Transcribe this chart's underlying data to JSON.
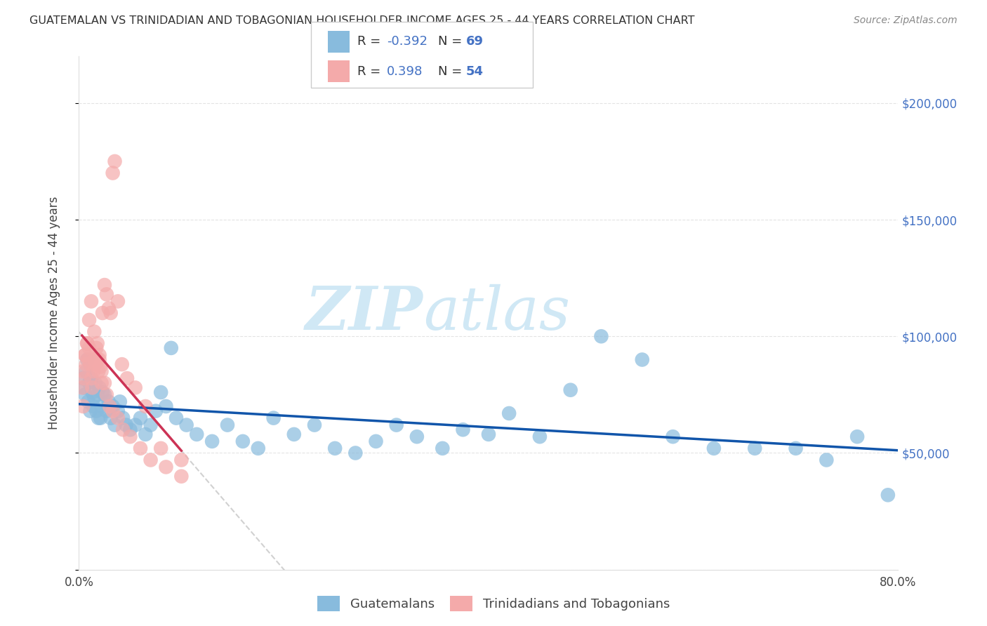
{
  "title": "GUATEMALAN VS TRINIDADIAN AND TOBAGONIAN HOUSEHOLDER INCOME AGES 25 - 44 YEARS CORRELATION CHART",
  "source": "Source: ZipAtlas.com",
  "ylabel": "Householder Income Ages 25 - 44 years",
  "xlim": [
    0.0,
    0.8
  ],
  "ylim": [
    0,
    220000
  ],
  "xticks": [
    0.0,
    0.1,
    0.2,
    0.3,
    0.4,
    0.5,
    0.6,
    0.7,
    0.8
  ],
  "xticklabels": [
    "0.0%",
    "",
    "",
    "",
    "",
    "",
    "",
    "",
    "80.0%"
  ],
  "ytick_positions": [
    0,
    50000,
    100000,
    150000,
    200000
  ],
  "ytick_labels": [
    "",
    "$50,000",
    "$100,000",
    "$150,000",
    "$200,000"
  ],
  "legend_r_blue": "-0.392",
  "legend_n_blue": "69",
  "legend_r_pink": "0.398",
  "legend_n_pink": "54",
  "blue_color": "#88bbdd",
  "pink_color": "#f4aaaa",
  "trend_blue_color": "#1155aa",
  "trend_pink_color": "#cc3355",
  "gray_dash_color": "#cccccc",
  "watermark_zip": "ZIP",
  "watermark_atlas": "atlas",
  "watermark_color": "#d0e8f5",
  "blue_scatter_x": [
    0.004,
    0.005,
    0.006,
    0.007,
    0.008,
    0.009,
    0.01,
    0.011,
    0.012,
    0.013,
    0.014,
    0.015,
    0.016,
    0.017,
    0.018,
    0.019,
    0.02,
    0.021,
    0.022,
    0.023,
    0.025,
    0.027,
    0.029,
    0.031,
    0.033,
    0.035,
    0.038,
    0.04,
    0.043,
    0.046,
    0.05,
    0.055,
    0.06,
    0.065,
    0.07,
    0.075,
    0.08,
    0.085,
    0.09,
    0.095,
    0.105,
    0.115,
    0.13,
    0.145,
    0.16,
    0.175,
    0.19,
    0.21,
    0.23,
    0.25,
    0.27,
    0.29,
    0.31,
    0.33,
    0.355,
    0.375,
    0.4,
    0.42,
    0.45,
    0.48,
    0.51,
    0.55,
    0.58,
    0.62,
    0.66,
    0.7,
    0.73,
    0.76,
    0.79
  ],
  "blue_scatter_y": [
    82000,
    78000,
    75000,
    85000,
    90000,
    72000,
    80000,
    68000,
    82000,
    76000,
    70000,
    74000,
    80000,
    68000,
    75000,
    65000,
    78000,
    65000,
    70000,
    76000,
    75000,
    68000,
    72000,
    65000,
    70000,
    62000,
    68000,
    72000,
    65000,
    62000,
    60000,
    62000,
    65000,
    58000,
    62000,
    68000,
    76000,
    70000,
    95000,
    65000,
    62000,
    58000,
    55000,
    62000,
    55000,
    52000,
    65000,
    58000,
    62000,
    52000,
    50000,
    55000,
    62000,
    57000,
    52000,
    60000,
    58000,
    67000,
    57000,
    77000,
    100000,
    90000,
    57000,
    52000,
    52000,
    52000,
    47000,
    57000,
    32000
  ],
  "pink_scatter_x": [
    0.003,
    0.004,
    0.005,
    0.006,
    0.007,
    0.008,
    0.009,
    0.01,
    0.011,
    0.012,
    0.013,
    0.014,
    0.015,
    0.016,
    0.017,
    0.018,
    0.019,
    0.02,
    0.021,
    0.022,
    0.023,
    0.025,
    0.027,
    0.029,
    0.031,
    0.033,
    0.035,
    0.038,
    0.042,
    0.047,
    0.055,
    0.065,
    0.08,
    0.1,
    0.004,
    0.006,
    0.008,
    0.01,
    0.012,
    0.015,
    0.018,
    0.02,
    0.022,
    0.025,
    0.027,
    0.03,
    0.033,
    0.038,
    0.043,
    0.05,
    0.06,
    0.07,
    0.085,
    0.1
  ],
  "pink_scatter_y": [
    78000,
    70000,
    82000,
    92000,
    88000,
    97000,
    90000,
    95000,
    88000,
    82000,
    78000,
    85000,
    90000,
    88000,
    95000,
    90000,
    85000,
    92000,
    87000,
    80000,
    110000,
    122000,
    118000,
    112000,
    110000,
    170000,
    175000,
    115000,
    88000,
    82000,
    78000,
    70000,
    52000,
    47000,
    85000,
    92000,
    97000,
    107000,
    115000,
    102000,
    97000,
    90000,
    85000,
    80000,
    75000,
    70000,
    68000,
    65000,
    60000,
    57000,
    52000,
    47000,
    44000,
    40000
  ]
}
